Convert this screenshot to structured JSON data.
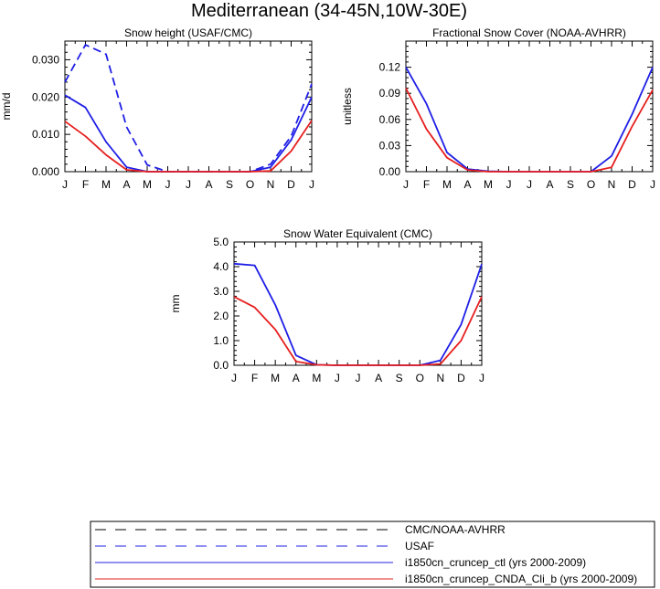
{
  "figure": {
    "title": "Mediterranean (34-45N,10W-30E)"
  },
  "colors": {
    "blue": "#1f1fe6",
    "red": "#e61f1f",
    "black": "#000000"
  },
  "months": [
    "J",
    "F",
    "M",
    "A",
    "M",
    "J",
    "J",
    "A",
    "S",
    "O",
    "N",
    "D",
    "J"
  ],
  "legend": {
    "entries": [
      {
        "label": "CMC/NOAA-AVHRR",
        "color": "#000000",
        "dash": true
      },
      {
        "label": "USAF",
        "color": "#1f1fe6",
        "dash": true
      },
      {
        "label": "i1850cn_cruncep_ctl (yrs 2000-2009)",
        "color": "#1f1fe6",
        "dash": false
      },
      {
        "label": "i1850cn_cruncep_CNDA_Cli_b (yrs 2000-2009)",
        "color": "#e61f1f",
        "dash": false
      }
    ]
  },
  "chart_data": [
    {
      "type": "line",
      "title": "Snow height (USAF/CMC)",
      "xlabel": "",
      "ylabel": "mm/d",
      "x": [
        "J",
        "F",
        "M",
        "A",
        "M",
        "J",
        "J",
        "A",
        "S",
        "O",
        "N",
        "D",
        "J"
      ],
      "ylim": [
        0,
        0.035
      ],
      "yticks": [
        "0.000",
        "0.010",
        "0.020",
        "0.030"
      ],
      "ytick_values": [
        0,
        0.01,
        0.02,
        0.03
      ],
      "series": [
        {
          "name": "USAF",
          "color": "#1f1fe6",
          "dash": true,
          "values": [
            0.024,
            0.034,
            0.0315,
            0.012,
            0.0018,
            0,
            0,
            0,
            0,
            0,
            0.002,
            0.0095,
            0.0235
          ]
        },
        {
          "name": "i1850cn_cruncep_ctl (yrs 2000-2009)",
          "color": "#1f1fe6",
          "dash": false,
          "values": [
            0.0205,
            0.0172,
            0.008,
            0.0012,
            0,
            0,
            0,
            0,
            0,
            0,
            0.0012,
            0.0085,
            0.02
          ]
        },
        {
          "name": "i1850cn_cruncep_CNDA_Cli_b (yrs 2000-2009)",
          "color": "#e61f1f",
          "dash": false,
          "values": [
            0.0135,
            0.0095,
            0.0045,
            0.0005,
            0,
            0,
            0,
            0,
            0,
            0,
            0.0002,
            0.0055,
            0.0137
          ]
        }
      ]
    },
    {
      "type": "line",
      "title": "Fractional Snow Cover (NOAA-AVHRR)",
      "xlabel": "",
      "ylabel": "unitless",
      "x": [
        "J",
        "F",
        "M",
        "A",
        "M",
        "J",
        "J",
        "A",
        "S",
        "O",
        "N",
        "D",
        "J"
      ],
      "ylim": [
        0,
        0.15
      ],
      "yticks": [
        "0.00",
        "0.03",
        "0.06",
        "0.09",
        "0.12"
      ],
      "ytick_values": [
        0,
        0.03,
        0.06,
        0.09,
        0.12
      ],
      "series": [
        {
          "name": "i1850cn_cruncep_ctl (yrs 2000-2009)",
          "color": "#1f1fe6",
          "dash": false,
          "values": [
            0.12,
            0.078,
            0.022,
            0.003,
            0.0005,
            0,
            0,
            0,
            0,
            0,
            0.018,
            0.066,
            0.12
          ]
        },
        {
          "name": "i1850cn_cruncep_CNDA_Cli_b (yrs 2000-2009)",
          "color": "#e61f1f",
          "dash": false,
          "values": [
            0.096,
            0.049,
            0.016,
            0.002,
            0,
            0,
            0,
            0,
            0,
            0,
            0.005,
            0.052,
            0.094
          ]
        }
      ]
    },
    {
      "type": "line",
      "title": "Snow Water Equivalent (CMC)",
      "xlabel": "",
      "ylabel": "mm",
      "x": [
        "J",
        "F",
        "M",
        "A",
        "M",
        "J",
        "J",
        "A",
        "S",
        "O",
        "N",
        "D",
        "J"
      ],
      "ylim": [
        0,
        5.0
      ],
      "yticks": [
        "0.0",
        "1.0",
        "2.0",
        "3.0",
        "4.0",
        "5.0"
      ],
      "ytick_values": [
        0,
        1,
        2,
        3,
        4,
        5
      ],
      "series": [
        {
          "name": "i1850cn_cruncep_ctl (yrs 2000-2009)",
          "color": "#1f1fe6",
          "dash": false,
          "values": [
            4.12,
            4.05,
            2.45,
            0.4,
            0.02,
            0,
            0,
            0,
            0,
            0,
            0.2,
            1.65,
            4.1
          ]
        },
        {
          "name": "i1850cn_cruncep_CNDA_Cli_b (yrs 2000-2009)",
          "color": "#e61f1f",
          "dash": false,
          "values": [
            2.78,
            2.35,
            1.45,
            0.15,
            0.02,
            0,
            0,
            0,
            0,
            0,
            0.05,
            1.0,
            2.78
          ]
        }
      ]
    }
  ]
}
